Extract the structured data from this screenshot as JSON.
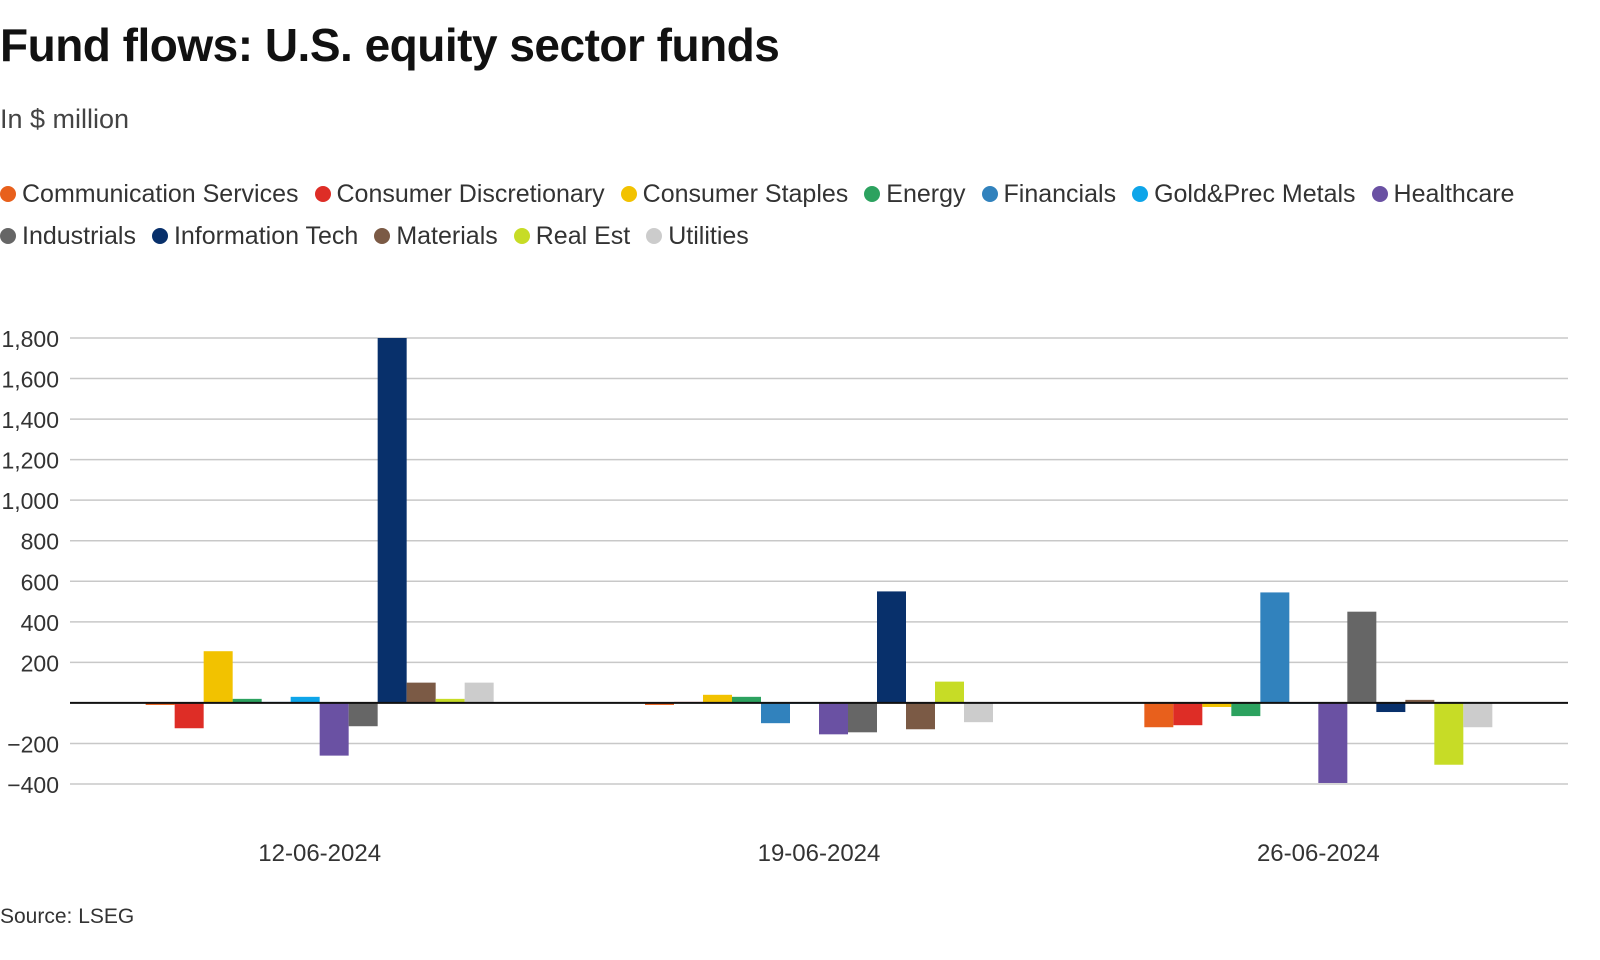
{
  "header": {
    "title": "Fund flows: U.S. equity sector funds",
    "subtitle": "In $ million"
  },
  "footer": {
    "source": "Source: LSEG"
  },
  "colors": {
    "Communication Services": "#e8601c",
    "Consumer Discretionary": "#de2d26",
    "Consumer Staples": "#f2c200",
    "Energy": "#2ca25f",
    "Financials": "#3182bd",
    "Gold&Prec Metals": "#0ea5e9",
    "Healthcare": "#6a51a3",
    "Industrials": "#666666",
    "Information Tech": "#08306b",
    "Materials": "#7b5a45",
    "Real Est": "#c7dc26",
    "Utilities": "#cccccc"
  },
  "chart_data": {
    "type": "bar",
    "title": "Fund flows: U.S. equity sector funds",
    "subtitle": "In $ million",
    "categories": [
      "12-06-2024",
      "19-06-2024",
      "26-06-2024"
    ],
    "ylim": [
      -400,
      1800
    ],
    "yticks": [
      -400,
      -200,
      200,
      400,
      600,
      800,
      1000,
      1200,
      1400,
      1600,
      1800
    ],
    "ytick_labels": [
      "−400",
      "−200",
      "200",
      "400",
      "600",
      "800",
      "1,000",
      "1,200",
      "1,400",
      "1,600",
      "1,800"
    ],
    "grid": true,
    "legend": "top",
    "series": [
      {
        "name": "Communication Services",
        "values": [
          -10,
          -10,
          -120
        ]
      },
      {
        "name": "Consumer Discretionary",
        "values": [
          -125,
          5,
          -110
        ]
      },
      {
        "name": "Consumer Staples",
        "values": [
          255,
          40,
          -20
        ]
      },
      {
        "name": "Energy",
        "values": [
          20,
          30,
          -65
        ]
      },
      {
        "name": "Financials",
        "values": [
          5,
          -100,
          545
        ]
      },
      {
        "name": "Gold&Prec Metals",
        "values": [
          30,
          0,
          0
        ]
      },
      {
        "name": "Healthcare",
        "values": [
          -260,
          -155,
          -395
        ]
      },
      {
        "name": "Industrials",
        "values": [
          -115,
          -145,
          450
        ]
      },
      {
        "name": "Information Tech",
        "values": [
          1800,
          550,
          -45
        ]
      },
      {
        "name": "Materials",
        "values": [
          100,
          -130,
          15
        ]
      },
      {
        "name": "Real Est",
        "values": [
          20,
          105,
          -305
        ]
      },
      {
        "name": "Utilities",
        "values": [
          100,
          -95,
          -120
        ]
      }
    ]
  }
}
